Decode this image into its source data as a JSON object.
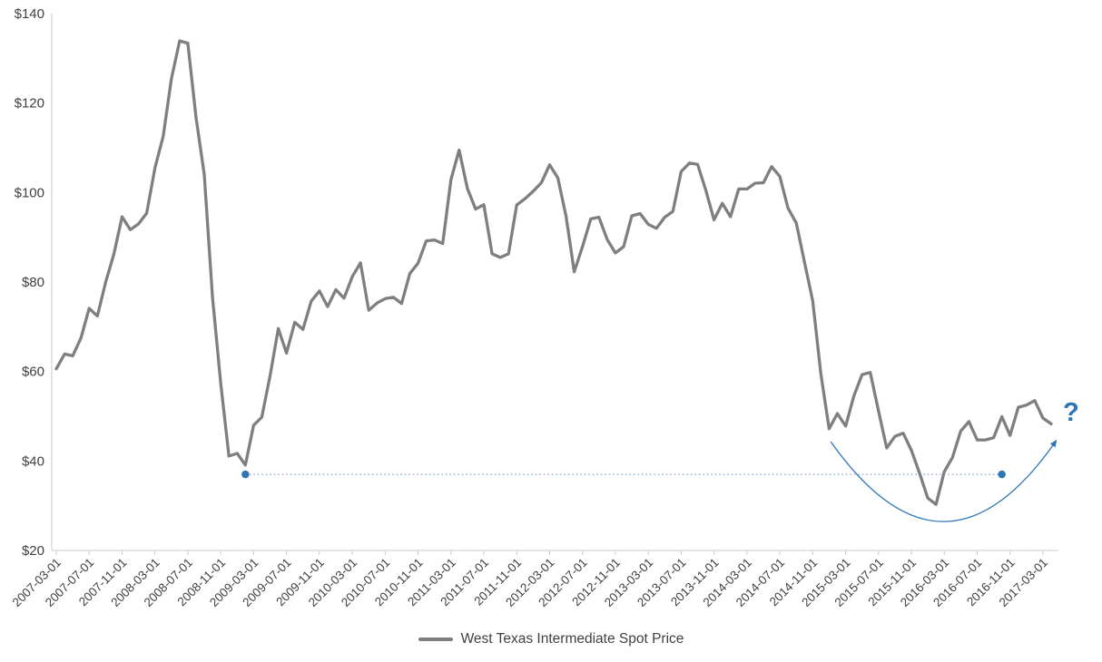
{
  "colors": {
    "line": "#7F7F7F",
    "axis": "#C9C9C9",
    "text": "#404040",
    "accent": "#2E75B6",
    "accent_light": "#7EA4CF"
  },
  "chart_data": {
    "type": "line",
    "title": "",
    "series_name": "West Texas Intermediate Spot Price",
    "legend_label": "West Texas Intermediate Spot Price",
    "legend_position": "bottom",
    "grid": false,
    "x_start": "2007-03-01",
    "x_frequency": "monthly",
    "ylim": [
      20,
      140
    ],
    "y_tick_step": 20,
    "y_tick_labels": [
      "$20",
      "$40",
      "$60",
      "$80",
      "$100",
      "$120",
      "$140"
    ],
    "x_tick_every": 4,
    "x_tick_labels": [
      "2007-03-01",
      "2007-07-01",
      "2007-11-01",
      "2008-03-01",
      "2008-07-01",
      "2008-11-01",
      "2009-03-01",
      "2009-07-01",
      "2009-11-01",
      "2010-03-01",
      "2010-07-01",
      "2010-11-01",
      "2011-03-01",
      "2011-07-01",
      "2011-11-01",
      "2012-03-01",
      "2012-07-01",
      "2012-11-01",
      "2013-03-01",
      "2013-07-01",
      "2013-11-01",
      "2014-03-01",
      "2014-07-01",
      "2014-11-01",
      "2015-03-01",
      "2015-07-01",
      "2015-11-01",
      "2016-03-01",
      "2016-07-01",
      "2016-11-01",
      "2017-03-01"
    ],
    "values": [
      60.6,
      63.9,
      63.5,
      67.5,
      74.1,
      72.4,
      79.9,
      86.2,
      94.6,
      91.7,
      93.0,
      95.4,
      105.5,
      112.6,
      125.4,
      133.9,
      133.4,
      116.7,
      104.1,
      76.6,
      57.3,
      41.1,
      41.7,
      39.1,
      48.0,
      49.8,
      59.0,
      69.6,
      64.1,
      71.0,
      69.4,
      75.7,
      78.0,
      74.5,
      78.3,
      76.4,
      81.2,
      84.3,
      73.7,
      75.3,
      76.3,
      76.6,
      75.2,
      81.9,
      84.2,
      89.2,
      89.4,
      88.6,
      102.9,
      109.5,
      100.9,
      96.3,
      97.3,
      86.3,
      85.5,
      86.3,
      97.2,
      98.6,
      100.3,
      102.2,
      106.2,
      103.3,
      94.7,
      82.3,
      87.9,
      94.1,
      94.5,
      89.5,
      86.5,
      87.9,
      94.8,
      95.3,
      92.9,
      92.0,
      94.5,
      95.8,
      104.7,
      106.6,
      106.3,
      100.5,
      93.9,
      97.6,
      94.6,
      100.8,
      100.8,
      102.1,
      102.2,
      105.8,
      103.6,
      96.5,
      93.2,
      84.4,
      75.8,
      59.3,
      47.2,
      50.6,
      47.8,
      54.5,
      59.3,
      59.8,
      51.2,
      42.9,
      45.5,
      46.2,
      42.4,
      37.2,
      31.7,
      30.3,
      37.6,
      40.8,
      46.7,
      48.8,
      44.7,
      44.7,
      45.2,
      49.9,
      45.7,
      52.0,
      52.5,
      53.5,
      49.6,
      48.3
    ],
    "annotations": {
      "dotted_line": {
        "value": 37,
        "start_index": 23,
        "start_label": "2009-02-01",
        "end_index": 115,
        "end_label": "2016-10-01"
      },
      "arc": {
        "start_index": 94.2,
        "start_value": 44.3,
        "control_index": 108,
        "control_value": 8.5,
        "end_index": 121.6,
        "end_value": 44.5
      },
      "question": {
        "label": "?",
        "value": 49.5
      }
    }
  }
}
